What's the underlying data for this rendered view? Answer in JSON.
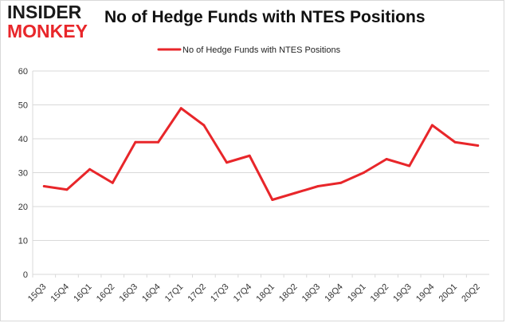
{
  "logo": {
    "line1": "INSIDER",
    "line2": "MONKEY"
  },
  "colors": {
    "series": "#e8262a",
    "grid": "#d9d9d9",
    "axis": "#333333"
  },
  "chart_data": {
    "type": "line",
    "title": "No of Hedge Funds with NTES Positions",
    "xlabel": "",
    "ylabel": "",
    "ylim": [
      0,
      60
    ],
    "yticks": [
      0,
      10,
      20,
      30,
      40,
      50,
      60
    ],
    "grid": true,
    "legend": "top-center",
    "categories": [
      "15Q3",
      "15Q4",
      "16Q1",
      "16Q2",
      "16Q3",
      "16Q4",
      "17Q1",
      "17Q2",
      "17Q3",
      "17Q4",
      "18Q1",
      "18Q2",
      "18Q3",
      "18Q4",
      "19Q1",
      "19Q2",
      "19Q3",
      "19Q4",
      "20Q1",
      "20Q2"
    ],
    "series": [
      {
        "name": "No of Hedge Funds with NTES Positions",
        "values": [
          26,
          25,
          31,
          27,
          39,
          39,
          49,
          44,
          33,
          35,
          22,
          24,
          26,
          27,
          30,
          34,
          32,
          44,
          39,
          38
        ]
      }
    ]
  }
}
